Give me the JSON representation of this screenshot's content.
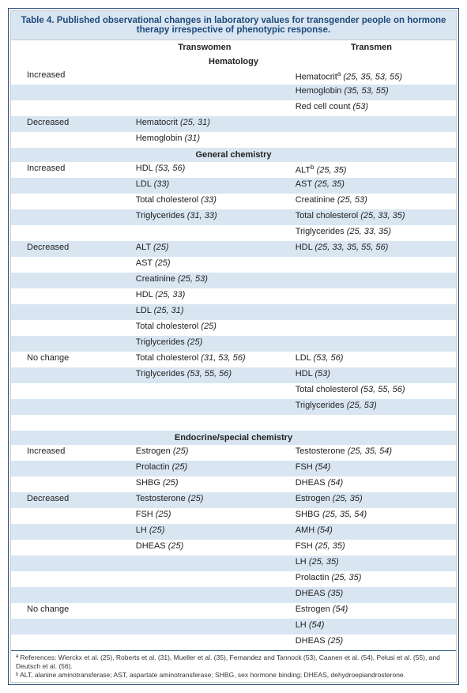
{
  "title": "Table 4.   Published observational changes in laboratory values for transgender people on hormone therapy irrespective of phenotypic response.",
  "headers": {
    "c1": "",
    "c2": "Transwomen",
    "c3": "Transmen"
  },
  "sections": [
    {
      "name": "Hematology",
      "rows": [
        {
          "lbl": "Increased",
          "tw": "",
          "tm": "Hematocrit",
          "tmr": "(25, 35, 53, 55)",
          "tmsup": "a"
        },
        {
          "lbl": "",
          "tw": "",
          "tm": "Hemoglobin",
          "tmr": "(35, 53, 55)",
          "alt": true
        },
        {
          "lbl": "",
          "tw": "",
          "tm": "Red cell count",
          "tmr": "(53)"
        },
        {
          "lbl": "Decreased",
          "tw": "Hematocrit",
          "twr": "(25, 31)",
          "tm": "",
          "alt": true
        },
        {
          "lbl": "",
          "tw": "Hemoglobin",
          "twr": "(31)",
          "tm": ""
        }
      ]
    },
    {
      "name": "General chemistry",
      "alt": true,
      "rows": [
        {
          "lbl": "Increased",
          "tw": "HDL",
          "twr": "(53, 56)",
          "tm": "ALT",
          "tmsup": "b",
          "tmr": "(25, 35)"
        },
        {
          "lbl": "",
          "tw": "LDL",
          "twr": "(33)",
          "tm": "AST",
          "tmr": "(25, 35)",
          "alt": true
        },
        {
          "lbl": "",
          "tw": "Total cholesterol",
          "twr": "(33)",
          "tm": "Creatinine",
          "tmr": "(25, 53)"
        },
        {
          "lbl": "",
          "tw": "Triglycerides",
          "twr": "(31, 33)",
          "tm": "Total cholesterol",
          "tmr": "(25, 33, 35)",
          "alt": true
        },
        {
          "lbl": "",
          "tw": "",
          "tm": "Triglycerides",
          "tmr": "(25, 33, 35)"
        },
        {
          "lbl": "Decreased",
          "tw": "ALT",
          "twr": "(25)",
          "tm": "HDL",
          "tmr": "(25, 33, 35, 55, 56)",
          "alt": true
        },
        {
          "lbl": "",
          "tw": "AST",
          "twr": "(25)",
          "tm": ""
        },
        {
          "lbl": "",
          "tw": "Creatinine",
          "twr": "(25, 53)",
          "tm": "",
          "alt": true
        },
        {
          "lbl": "",
          "tw": "HDL",
          "twr": "(25, 33)",
          "tm": ""
        },
        {
          "lbl": "",
          "tw": "LDL",
          "twr": "(25, 31)",
          "tm": "",
          "alt": true
        },
        {
          "lbl": "",
          "tw": "Total cholesterol",
          "twr": "(25)",
          "tm": ""
        },
        {
          "lbl": "",
          "tw": "Triglycerides",
          "twr": "(25)",
          "tm": "",
          "alt": true
        },
        {
          "lbl": "No change",
          "tw": "Total cholesterol",
          "twr": "(31, 53, 56)",
          "tm": "LDL",
          "tmr": "(53, 56)"
        },
        {
          "lbl": "",
          "tw": "Triglycerides",
          "twr": "(53, 55, 56)",
          "tm": "HDL",
          "tmr": "(53)",
          "alt": true
        },
        {
          "lbl": "",
          "tw": "",
          "tm": "Total cholesterol",
          "tmr": "(53, 55, 56)"
        },
        {
          "lbl": "",
          "tw": "",
          "tm": "Triglycerides",
          "tmr": "(25, 53)",
          "alt": true
        },
        {
          "lbl": "",
          "tw": "",
          "tm": ""
        }
      ]
    },
    {
      "name": "Endocrine/special chemistry",
      "alt": true,
      "rows": [
        {
          "lbl": "Increased",
          "tw": "Estrogen",
          "twr": "(25)",
          "tm": "Testosterone",
          "tmr": "(25, 35, 54)"
        },
        {
          "lbl": "",
          "tw": "Prolactin",
          "twr": "(25)",
          "tm": "FSH",
          "tmr": "(54)",
          "alt": true
        },
        {
          "lbl": "",
          "tw": "SHBG",
          "twr": "(25)",
          "tm": "DHEAS",
          "tmr": "(54)"
        },
        {
          "lbl": "Decreased",
          "tw": "Testosterone",
          "twr": "(25)",
          "tm": "Estrogen",
          "tmr": "(25, 35)",
          "alt": true
        },
        {
          "lbl": "",
          "tw": "FSH",
          "twr": "(25)",
          "tm": "SHBG",
          "tmr": "(25, 35, 54)"
        },
        {
          "lbl": "",
          "tw": "LH",
          "twr": "(25)",
          "tm": "AMH",
          "tmr": "(54)",
          "alt": true
        },
        {
          "lbl": "",
          "tw": "DHEAS",
          "twr": "(25)",
          "tm": "FSH",
          "tmr": "(25, 35)"
        },
        {
          "lbl": "",
          "tw": "",
          "tm": "LH",
          "tmr": "(25, 35)",
          "alt": true
        },
        {
          "lbl": "",
          "tw": "",
          "tm": "Prolactin",
          "tmr": "(25, 35)"
        },
        {
          "lbl": "",
          "tw": "",
          "tm": "DHEAS",
          "tmr": "(35)",
          "alt": true
        },
        {
          "lbl": "No change",
          "tw": "",
          "tm": "Estrogen",
          "tmr": "(54)"
        },
        {
          "lbl": "",
          "tw": "",
          "tm": "LH",
          "tmr": "(54)",
          "alt": true
        },
        {
          "lbl": "",
          "tw": "",
          "tm": "DHEAS",
          "tmr": "(25)"
        }
      ]
    }
  ],
  "footnotes": [
    "ª References: Wierckx et al. (25), Roberts et al. (31), Mueller et al. (35), Fernandez and Tannock (53), Caanen et al. (54), Pelusi et al. (55), and Deutsch et al. (56).",
    "ᵇ ALT, alanine aminotransferase; AST, aspartate aminotransferase; SHBG, sex hormone binding; DHEAS, dehydroepiandrosterone."
  ]
}
